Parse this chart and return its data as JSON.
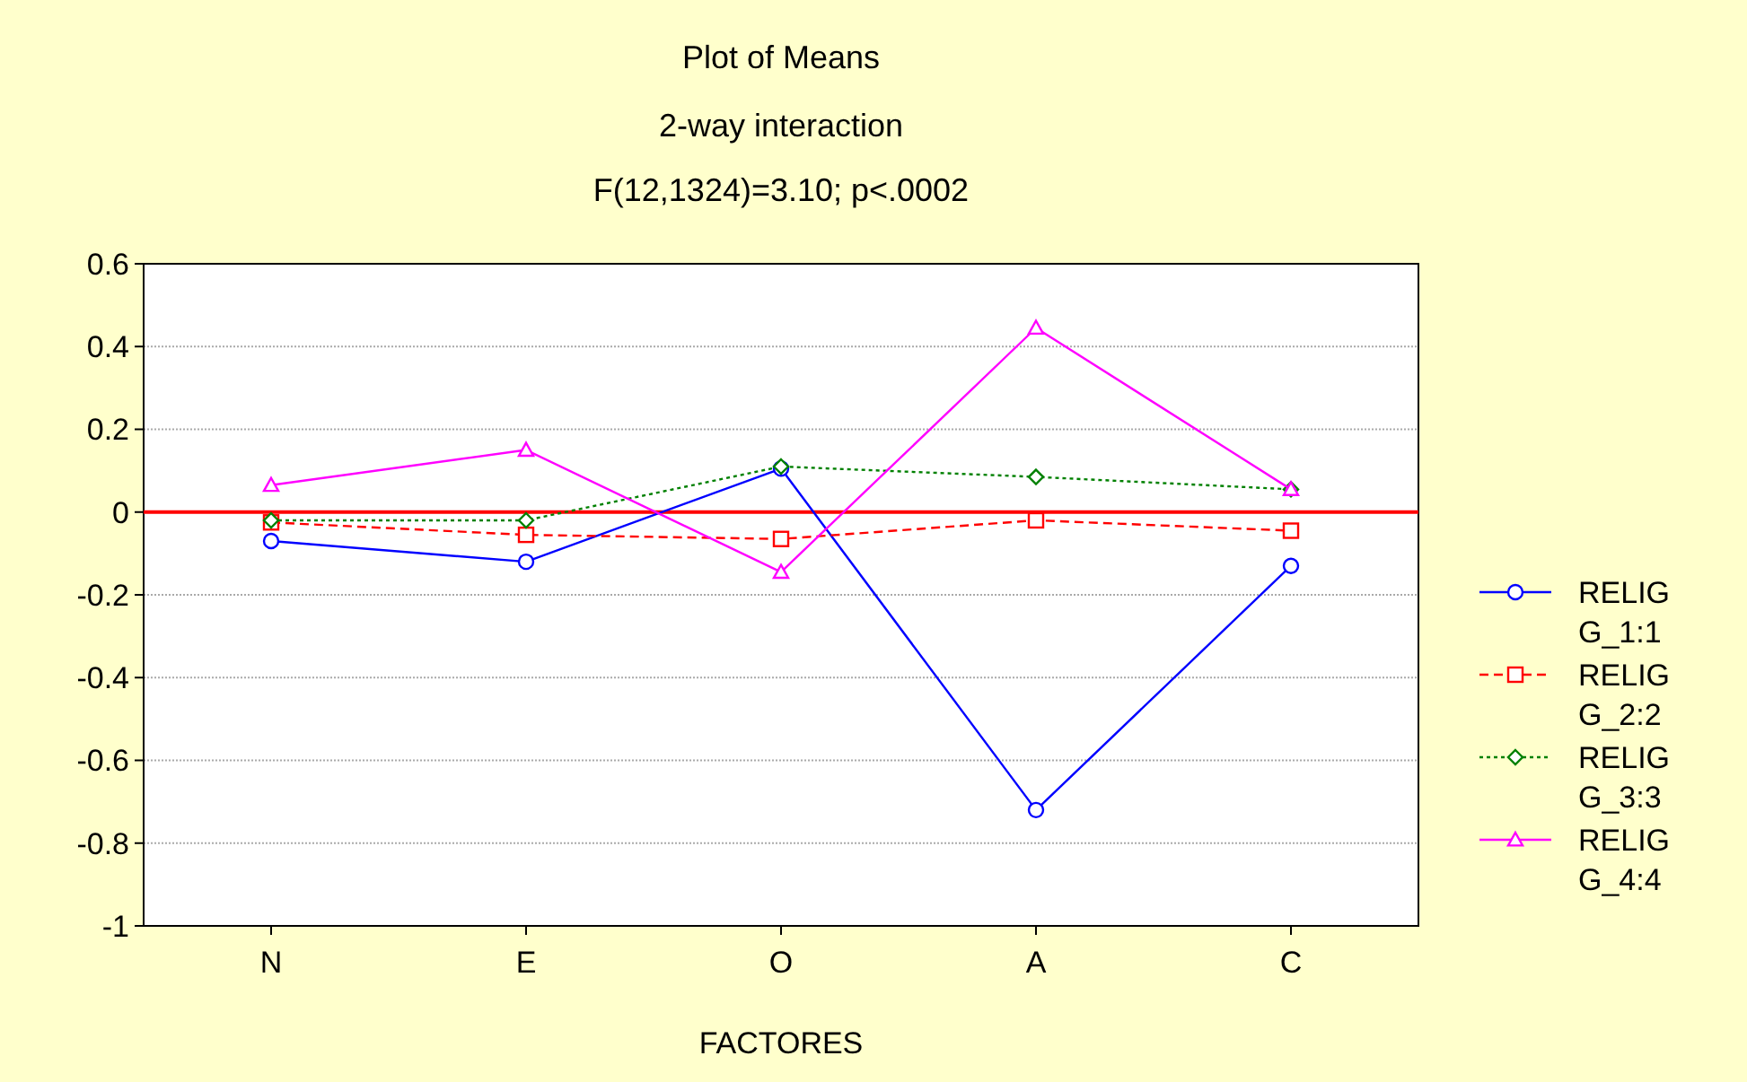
{
  "chart_data": {
    "type": "line",
    "title": "Plot of Means",
    "subtitle": "2-way interaction",
    "annotations": [
      "F(12,1324)=3.10; p<.0002"
    ],
    "xlabel": "FACTORES",
    "categories": [
      "N",
      "E",
      "O",
      "A",
      "C"
    ],
    "ylim": [
      -1,
      0.6
    ],
    "yticks": [
      {
        "value": -1,
        "label": "-1"
      },
      -0.8,
      -0.6,
      -0.4,
      -0.2,
      0,
      0.2,
      0.4,
      0.6
    ],
    "grid": "y",
    "legend": "right",
    "ref_lines": [
      {
        "axis": "y",
        "value": 0,
        "color": "#ff0000"
      }
    ],
    "series": [
      {
        "name": "RELIG G_1:1",
        "color": "#0000ff",
        "marker": "circle",
        "line_style": "solid",
        "values": [
          -0.07,
          -0.12,
          0.105,
          -0.72,
          -0.13
        ]
      },
      {
        "name": "RELIG G_2:2",
        "color": "#ff0000",
        "marker": "square",
        "line_style": "dashed",
        "values": [
          -0.025,
          -0.055,
          -0.065,
          -0.02,
          -0.045
        ]
      },
      {
        "name": "RELIG G_3:3",
        "color": "#008000",
        "marker": "diamond",
        "line_style": "dotted",
        "values": [
          -0.02,
          -0.02,
          0.11,
          0.085,
          0.055
        ]
      },
      {
        "name": "RELIG G_4:4",
        "color": "#ff00ff",
        "marker": "triangle",
        "line_style": "solid",
        "values": [
          0.065,
          0.15,
          -0.145,
          0.445,
          0.055
        ]
      }
    ]
  }
}
